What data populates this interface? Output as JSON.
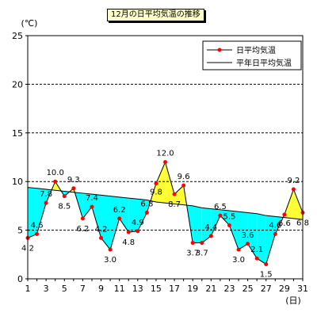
{
  "chart_data": {
    "type": "line",
    "title": "12月の日平均気温の推移",
    "ylabel": "(℃)",
    "xlabel": "(日)",
    "ylim": [
      0,
      25
    ],
    "yticks": [
      0,
      5,
      10,
      15,
      20,
      25
    ],
    "x": [
      1,
      2,
      3,
      4,
      5,
      6,
      7,
      8,
      9,
      10,
      11,
      12,
      13,
      14,
      15,
      16,
      17,
      18,
      19,
      20,
      21,
      22,
      23,
      24,
      25,
      26,
      27,
      28,
      29,
      30,
      31
    ],
    "xtick_labels": [
      "1",
      "3",
      "5",
      "7",
      "9",
      "11",
      "13",
      "15",
      "17",
      "19",
      "21",
      "23",
      "25",
      "27",
      "29",
      "31"
    ],
    "series": [
      {
        "name": "日平均気温",
        "color": "#ff0000",
        "marker": "circle",
        "values": [
          4.2,
          4.6,
          7.8,
          10.0,
          8.5,
          9.3,
          6.2,
          7.4,
          4.2,
          3.0,
          6.2,
          4.8,
          4.9,
          6.8,
          9.8,
          12.0,
          8.7,
          9.6,
          3.7,
          3.7,
          4.4,
          6.5,
          5.5,
          3.0,
          3.6,
          2.1,
          1.5,
          4.6,
          6.6,
          9.2,
          6.8
        ]
      },
      {
        "name": "平年日平均気温",
        "color": "#000000",
        "values": [
          9.4,
          9.3,
          9.2,
          9.1,
          9.0,
          8.9,
          8.8,
          8.7,
          8.6,
          8.5,
          8.4,
          8.3,
          8.2,
          8.1,
          7.9,
          7.8,
          7.7,
          7.6,
          7.5,
          7.3,
          7.2,
          7.1,
          7.0,
          6.9,
          6.8,
          6.7,
          6.5,
          6.4,
          6.3,
          6.2,
          6.1
        ]
      }
    ],
    "data_labels": [
      "4.2",
      "4.6",
      "7.8",
      "10.0",
      "8.5",
      "9.3",
      "6.2",
      "7.4",
      "4.2",
      "3.0",
      "6.2",
      "4.8",
      "4.9",
      "6.8",
      "9.8",
      "12.0",
      "8.7",
      "9.6",
      "3.7",
      "3.7",
      "4.4",
      "6.5",
      "5.5",
      "3.0",
      "3.6",
      "2.1",
      "1.5",
      "4.6",
      "6.6",
      "9.2",
      "6.8"
    ],
    "fill_above_color": "#ffff33",
    "fill_below_color": "#00ffff",
    "grid": "horizontal dashed",
    "legend_position": "top-right"
  }
}
